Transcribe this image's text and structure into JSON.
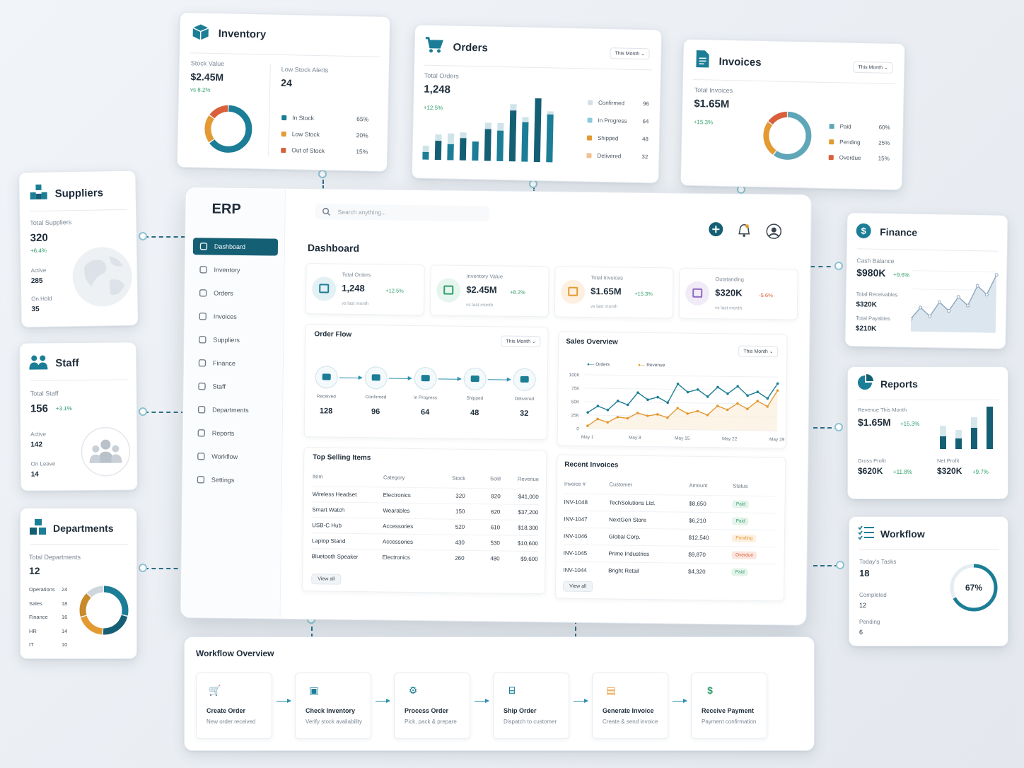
{
  "colors": {
    "teal": "#1b7d96",
    "dark_teal": "#155f75",
    "orange": "#e39a32",
    "red": "#d9603a",
    "green": "#2f9e6b",
    "light_blue": "#a9d3e0"
  },
  "inventory": {
    "title": "Inventory",
    "stock_value_label": "Stock Value",
    "stock_value": "$2.45M",
    "stock_delta": "vs 8.2%",
    "low_stock_label": "Low Stock Alerts",
    "low_stock": "24",
    "legend": [
      {
        "name": "In Stock",
        "value": "65%",
        "pct": 65,
        "color": "#1b7d96"
      },
      {
        "name": "Low Stock",
        "value": "20%",
        "pct": 20,
        "color": "#e39a32"
      },
      {
        "name": "Out of Stock",
        "value": "15%",
        "pct": 15,
        "color": "#d9603a"
      }
    ]
  },
  "orders": {
    "title": "Orders",
    "dropdown": "This Month",
    "total_label": "Total Orders",
    "total": "1,248",
    "delta": "+12.5%",
    "legend": [
      {
        "name": "Confirmed",
        "value": "96",
        "color": "#d6dde4"
      },
      {
        "name": "In Progress",
        "value": "64",
        "color": "#8cc9dc"
      },
      {
        "name": "Shipped",
        "value": "48",
        "color": "#e39a32"
      },
      {
        "name": "Delivered",
        "value": "32",
        "color": "#f2c08e"
      }
    ],
    "bars": [
      {
        "dark": 0.12,
        "light": 0.22
      },
      {
        "dark": 0.3,
        "light": 0.4
      },
      {
        "dark": 0.25,
        "light": 0.42
      },
      {
        "dark": 0.35,
        "light": 0.44
      },
      {
        "dark": 0.3,
        "light": 0.3
      },
      {
        "dark": 0.5,
        "light": 0.6
      },
      {
        "dark": 0.48,
        "light": 0.6
      },
      {
        "dark": 0.8,
        "light": 0.9
      },
      {
        "dark": 0.62,
        "light": 0.7
      },
      {
        "dark": 1.0,
        "light": 1.0
      },
      {
        "dark": 0.75,
        "light": 0.8
      }
    ]
  },
  "invoices": {
    "title": "Invoices",
    "dropdown": "This Month",
    "total_label": "Total Invoices",
    "total": "$1.65M",
    "delta": "+15.3%",
    "legend": [
      {
        "name": "Paid",
        "value": "60%",
        "pct": 60,
        "color": "#5fa7b8"
      },
      {
        "name": "Pending",
        "value": "25%",
        "pct": 25,
        "color": "#e39a32"
      },
      {
        "name": "Overdue",
        "value": "15%",
        "pct": 15,
        "color": "#d9603a"
      }
    ]
  },
  "suppliers": {
    "title": "Suppliers",
    "total_label": "Total Suppliers",
    "total": "320",
    "delta": "+6.4%",
    "active_label": "Active",
    "active": "285",
    "hold_label": "On Hold",
    "hold": "35"
  },
  "staff": {
    "title": "Staff",
    "total_label": "Total Staff",
    "total": "156",
    "delta": "+3.1%",
    "active_label": "Active",
    "active": "142",
    "leave_label": "On Leave",
    "leave": "14"
  },
  "departments": {
    "title": "Departments",
    "total_label": "Total Departments",
    "total": "12",
    "items": [
      {
        "name": "Operations",
        "value": "24",
        "n": 24,
        "color": "#1b7d96"
      },
      {
        "name": "Sales",
        "value": "18",
        "n": 18,
        "color": "#155f75"
      },
      {
        "name": "Finance",
        "value": "16",
        "n": 16,
        "color": "#e39a32"
      },
      {
        "name": "HR",
        "value": "14",
        "n": 14,
        "color": "#c98a2a"
      },
      {
        "name": "IT",
        "value": "10",
        "n": 10,
        "color": "#cfd6dd"
      }
    ]
  },
  "finance": {
    "title": "Finance",
    "cash_label": "Cash Balance",
    "cash": "$980K",
    "cash_delta": "+9.6%",
    "rec_label": "Total Receivables",
    "rec": "$320K",
    "pay_label": "Total Payables",
    "pay": "$210K",
    "spark": [
      0.15,
      0.35,
      0.2,
      0.45,
      0.3,
      0.55,
      0.4,
      0.75,
      0.6,
      0.95
    ]
  },
  "reports": {
    "title": "Reports",
    "rev_label": "Revenue This Month",
    "rev": "$1.65M",
    "rev_delta": "+15.3%",
    "gross_label": "Gross Profit",
    "gross": "$620K",
    "gross_delta": "+11.8%",
    "net_label": "Net Profit",
    "net": "$320K",
    "net_delta": "+9.7%",
    "bars": [
      {
        "dark": 0.3,
        "light": 0.55
      },
      {
        "dark": 0.25,
        "light": 0.45
      },
      {
        "dark": 0.5,
        "light": 0.75
      },
      {
        "dark": 1.0,
        "light": 0.65
      }
    ]
  },
  "workflow_card": {
    "title": "Workflow",
    "tasks_label": "Today's Tasks",
    "tasks": "18",
    "done_label": "Completed",
    "done": "12",
    "pending_label": "Pending",
    "pending": "6",
    "progress_pct": 67,
    "progress_text": "67%"
  },
  "erp": {
    "logo": "ERP",
    "search_placeholder": "Search anything...",
    "page_title": "Dashboard",
    "nav": [
      {
        "label": "Dashboard",
        "icon": "dashboard-icon"
      },
      {
        "label": "Inventory",
        "icon": "box-icon"
      },
      {
        "label": "Orders",
        "icon": "orders-icon"
      },
      {
        "label": "Invoices",
        "icon": "invoice-icon"
      },
      {
        "label": "Suppliers",
        "icon": "suppliers-icon"
      },
      {
        "label": "Finance",
        "icon": "finance-icon"
      },
      {
        "label": "Staff",
        "icon": "staff-icon"
      },
      {
        "label": "Departments",
        "icon": "departments-icon"
      },
      {
        "label": "Reports",
        "icon": "reports-icon"
      },
      {
        "label": "Workflow",
        "icon": "workflow-icon"
      },
      {
        "label": "Settings",
        "icon": "gear-icon"
      }
    ],
    "stats": [
      {
        "label": "Total Orders",
        "value": "1,248",
        "delta": "+12.5%",
        "sub": "vs last month",
        "color": "#1b7d96",
        "bg": "#e3f1f5",
        "kind": "pos"
      },
      {
        "label": "Inventory Value",
        "value": "$2.45M",
        "delta": "+8.2%",
        "sub": "vs last month",
        "color": "#2f9e6b",
        "bg": "#e6f5ee",
        "kind": "pos"
      },
      {
        "label": "Total Invoices",
        "value": "$1.65M",
        "delta": "+15.3%",
        "sub": "vs last month",
        "color": "#e39a32",
        "bg": "#fdf0e0",
        "kind": "pos"
      },
      {
        "label": "Outstanding",
        "value": "$320K",
        "delta": "-5.6%",
        "sub": "vs last month",
        "color": "#8e6bbf",
        "bg": "#f1ebf8",
        "kind": "neg"
      }
    ],
    "order_flow": {
      "title": "Order Flow",
      "dropdown": "This Month",
      "steps": [
        {
          "label": "Received",
          "value": "128"
        },
        {
          "label": "Confirmed",
          "value": "96"
        },
        {
          "label": "In Progress",
          "value": "64"
        },
        {
          "label": "Shipped",
          "value": "48"
        },
        {
          "label": "Delivered",
          "value": "32"
        }
      ]
    },
    "sales": {
      "title": "Sales Overview",
      "dropdown": "This Month",
      "legend_orders": "Orders",
      "legend_revenue": "Revenue"
    },
    "top_selling": {
      "title": "Top Selling Items",
      "headers": [
        "Item",
        "Category",
        "Stock",
        "Sold",
        "Revenue"
      ],
      "rows": [
        [
          "Wireless Headset",
          "Electronics",
          "320",
          "820",
          "$41,000"
        ],
        [
          "Smart Watch",
          "Wearables",
          "150",
          "620",
          "$37,200"
        ],
        [
          "USB-C Hub",
          "Accessories",
          "520",
          "610",
          "$18,300"
        ],
        [
          "Laptop Stand",
          "Accessories",
          "430",
          "530",
          "$10,600"
        ],
        [
          "Bluetooth Speaker",
          "Electronics",
          "260",
          "480",
          "$9,600"
        ]
      ],
      "view_all": "View all"
    },
    "recent_invoices": {
      "title": "Recent Invoices",
      "headers": [
        "Invoice #",
        "Customer",
        "Amount",
        "Status"
      ],
      "rows": [
        [
          "INV-1048",
          "TechSolutions Ltd.",
          "$8,650",
          "Paid"
        ],
        [
          "INV-1047",
          "NextGen Store",
          "$6,210",
          "Paid"
        ],
        [
          "INV-1046",
          "Global Corp.",
          "$12,540",
          "Pending"
        ],
        [
          "INV-1045",
          "Prime Industries",
          "$9,870",
          "Overdue"
        ],
        [
          "INV-1044",
          "Bright Retail",
          "$4,320",
          "Paid"
        ]
      ],
      "view_all": "View all"
    }
  },
  "chart_data": {
    "type": "line",
    "title": "Sales Overview",
    "categories": [
      "May 1",
      "May 8",
      "May 15",
      "May 22",
      "May 29"
    ],
    "x": [
      1,
      2,
      3,
      4,
      5,
      6,
      7,
      8,
      9,
      10,
      11,
      12,
      13,
      14,
      15,
      16,
      17,
      18,
      19,
      20
    ],
    "y_ticks": [
      "0",
      "25K",
      "50K",
      "75K",
      "100K"
    ],
    "ylim": [
      0,
      100000
    ],
    "series": [
      {
        "name": "Orders",
        "color": "#1b7d96",
        "values": [
          30000,
          42000,
          35000,
          52000,
          45000,
          68000,
          55000,
          60000,
          50000,
          85000,
          70000,
          75000,
          62000,
          80000,
          68000,
          82000,
          65000,
          72000,
          60000,
          88000
        ]
      },
      {
        "name": "Revenue",
        "color": "#e39a32",
        "values": [
          5000,
          18000,
          12000,
          22000,
          20000,
          30000,
          25000,
          28000,
          22000,
          40000,
          30000,
          35000,
          28000,
          45000,
          38000,
          50000,
          40000,
          55000,
          45000,
          75000
        ]
      }
    ]
  },
  "workflow_overview": {
    "title": "Workflow Overview",
    "steps": [
      {
        "title": "Create Order",
        "sub": "New order received",
        "icon": "cart-icon"
      },
      {
        "title": "Check Inventory",
        "sub": "Verify stock availability",
        "icon": "box-icon"
      },
      {
        "title": "Process Order",
        "sub": "Pick, pack & prepare",
        "icon": "gears-icon"
      },
      {
        "title": "Ship Order",
        "sub": "Dispatch to customer",
        "icon": "truck-icon"
      },
      {
        "title": "Generate Invoice",
        "sub": "Create & send invoice",
        "icon": "document-icon"
      },
      {
        "title": "Receive Payment",
        "sub": "Payment confirmation",
        "icon": "dollar-icon"
      }
    ]
  }
}
